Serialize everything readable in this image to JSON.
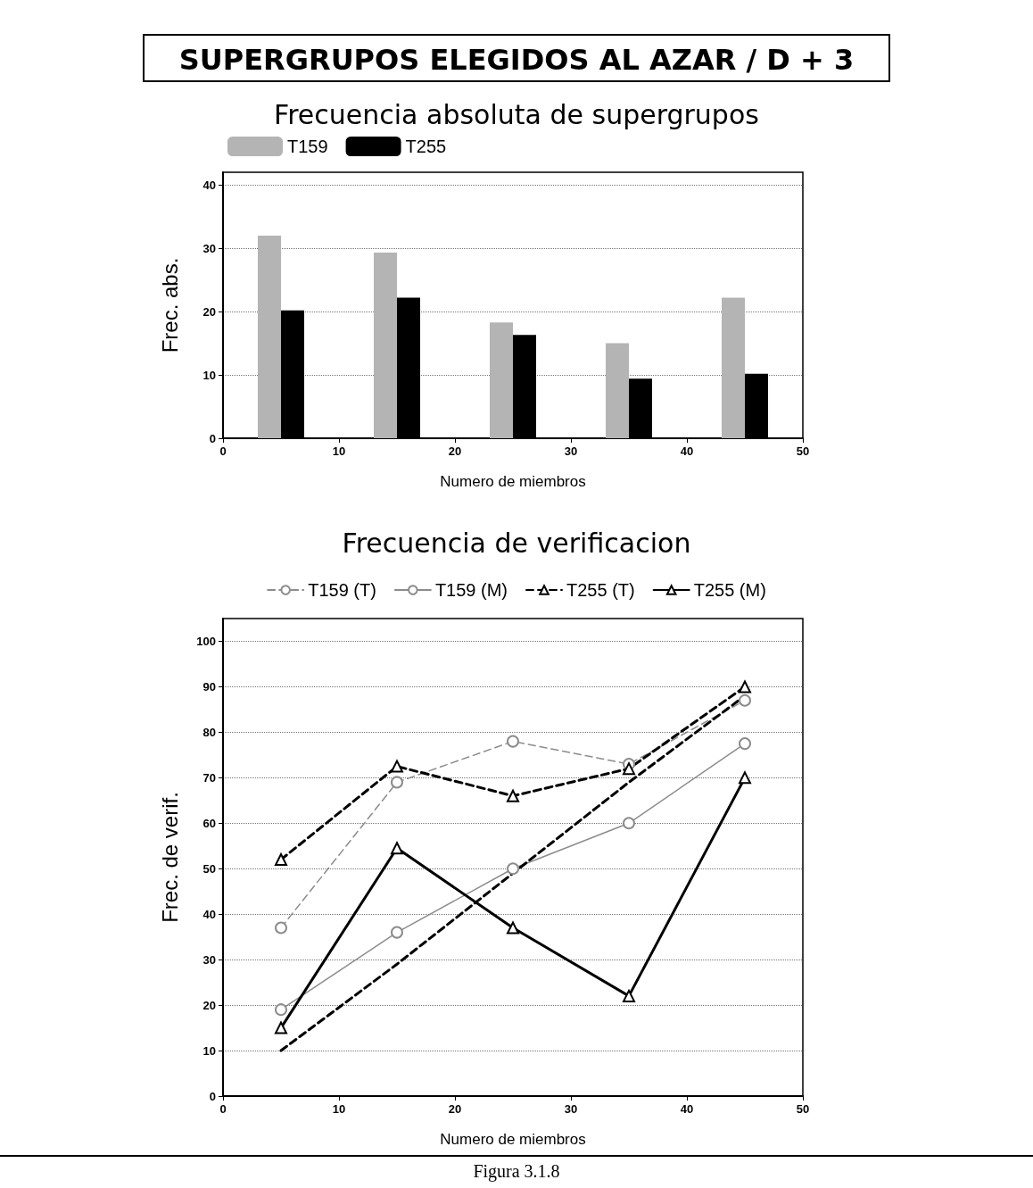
{
  "chart_data": [
    {
      "type": "bar",
      "title": "Frecuencia absoluta de supergrupos",
      "xlabel": "Numero de miembros",
      "ylabel": "Frec. abs.",
      "annotations": [
        "SUPERGRUPOS ELEGIDOS AL AZAR / D + 3"
      ],
      "series": [
        {
          "name": "T159",
          "color": "#b4b4b4",
          "x": [
            4,
            14,
            24,
            34,
            44
          ],
          "values": [
            32,
            29.3,
            18.3,
            15,
            22.2
          ]
        },
        {
          "name": "T255",
          "color": "#000000",
          "x": [
            6,
            16,
            26,
            36,
            46
          ],
          "values": [
            20.2,
            22.2,
            16.3,
            9.4,
            10.2
          ]
        }
      ],
      "xlim": [
        0,
        50
      ],
      "xticks": [
        0,
        10,
        20,
        30,
        40,
        50
      ],
      "ylim": [
        0,
        42
      ],
      "yticks": [
        0,
        10,
        20,
        30,
        40
      ],
      "grid": "y",
      "legend": "top left"
    },
    {
      "type": "line",
      "title": "Frecuencia de verificacion",
      "xlabel": "Numero de miembros",
      "ylabel": "Frec. de verif.",
      "annotations": [
        "Figura 3.1.8"
      ],
      "x": [
        5,
        15,
        25,
        35,
        45
      ],
      "series": [
        {
          "name": "T159 (T)",
          "color": "#8c8c8c",
          "values": [
            37,
            69,
            78,
            73,
            87
          ],
          "marker": "circle",
          "line_style": "dashed"
        },
        {
          "name": "T159 (M)",
          "color": "#8c8c8c",
          "values": [
            19,
            36,
            50,
            60,
            77.5
          ],
          "marker": "circle",
          "line_style": "solid"
        },
        {
          "name": "T255 (T)",
          "color": "#000000",
          "values": [
            52,
            72.5,
            66,
            72,
            90
          ],
          "marker": "triangle",
          "line_style": "dashed"
        },
        {
          "name": "T255 (M)",
          "color": "#000000",
          "values": [
            15,
            54.5,
            37,
            22,
            70
          ],
          "marker": "triangle",
          "line_style": "solid"
        },
        {
          "color": "#000000",
          "values": [
            10,
            29,
            49,
            69,
            88
          ],
          "marker": "none",
          "line_style": "dashed"
        }
      ],
      "xlim": [
        0,
        50
      ],
      "xticks": [
        0,
        10,
        20,
        30,
        40,
        50
      ],
      "ylim": [
        0,
        105
      ],
      "yticks": [
        0,
        10,
        20,
        30,
        40,
        50,
        60,
        70,
        80,
        90,
        100
      ],
      "grid": "y",
      "legend": "top"
    }
  ]
}
